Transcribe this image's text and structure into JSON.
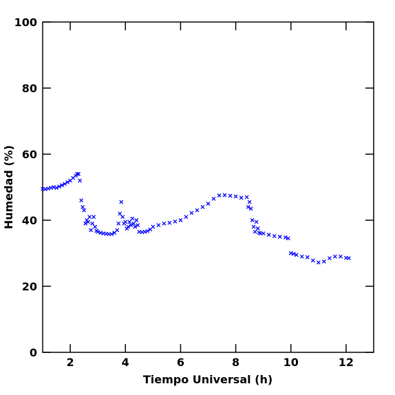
{
  "chart_data": {
    "type": "scatter",
    "xlabel": "Tiempo Universal (h)",
    "ylabel": "Humedad (%)",
    "color": "#0000ff",
    "marker": "x",
    "xlim": [
      1,
      13
    ],
    "xticks": [
      2,
      4,
      6,
      8,
      10,
      12
    ],
    "ylim": [
      0,
      100
    ],
    "yticks": [
      0,
      20,
      40,
      60,
      80,
      100
    ],
    "x": [
      1.0,
      1.1,
      1.2,
      1.3,
      1.4,
      1.5,
      1.6,
      1.7,
      1.8,
      1.9,
      2.0,
      2.1,
      2.2,
      2.25,
      2.3,
      2.35,
      2.4,
      2.45,
      2.5,
      2.55,
      2.6,
      2.65,
      2.7,
      2.75,
      2.8,
      2.85,
      2.9,
      2.95,
      3.0,
      3.1,
      3.2,
      3.3,
      3.4,
      3.5,
      3.6,
      3.7,
      3.75,
      3.8,
      3.85,
      3.9,
      3.95,
      4.0,
      4.05,
      4.1,
      4.15,
      4.2,
      4.25,
      4.3,
      4.35,
      4.4,
      4.45,
      4.5,
      4.6,
      4.7,
      4.8,
      4.9,
      5.0,
      5.2,
      5.4,
      5.6,
      5.8,
      6.0,
      6.2,
      6.4,
      6.6,
      6.8,
      7.0,
      7.2,
      7.4,
      7.6,
      7.8,
      8.0,
      8.2,
      8.4,
      8.45,
      8.5,
      8.55,
      8.6,
      8.65,
      8.7,
      8.75,
      8.8,
      8.85,
      8.9,
      9.0,
      9.2,
      9.4,
      9.6,
      9.8,
      9.9,
      10.0,
      10.1,
      10.2,
      10.4,
      10.6,
      10.8,
      11.0,
      11.2,
      11.4,
      11.6,
      11.8,
      12.0,
      12.1
    ],
    "y": [
      49.5,
      49.4,
      49.6,
      49.8,
      50.0,
      49.8,
      50.2,
      50.6,
      51.0,
      51.5,
      52.0,
      52.8,
      53.5,
      54.0,
      54.0,
      52.0,
      46.0,
      44.0,
      43.0,
      39.0,
      40.0,
      39.5,
      41.0,
      37.0,
      39.0,
      41.0,
      38.0,
      36.8,
      36.5,
      36.2,
      36.0,
      35.9,
      35.8,
      35.8,
      36.2,
      37.0,
      39.0,
      42.0,
      45.5,
      41.0,
      39.0,
      39.5,
      37.5,
      38.0,
      39.5,
      38.5,
      40.5,
      39.0,
      38.0,
      40.0,
      38.5,
      36.5,
      36.4,
      36.5,
      36.7,
      37.2,
      38.0,
      38.5,
      39.0,
      39.2,
      39.6,
      40.0,
      41.0,
      42.2,
      43.0,
      44.0,
      45.0,
      46.5,
      47.5,
      47.6,
      47.4,
      47.2,
      46.8,
      47.0,
      44.0,
      45.5,
      43.5,
      40.0,
      38.0,
      36.5,
      39.5,
      37.5,
      36.2,
      36.0,
      36.0,
      35.6,
      35.2,
      35.0,
      34.8,
      34.5,
      30.0,
      29.8,
      29.5,
      29.0,
      28.8,
      27.8,
      27.2,
      27.5,
      28.5,
      29.0,
      29.0,
      28.6,
      28.5
    ]
  }
}
